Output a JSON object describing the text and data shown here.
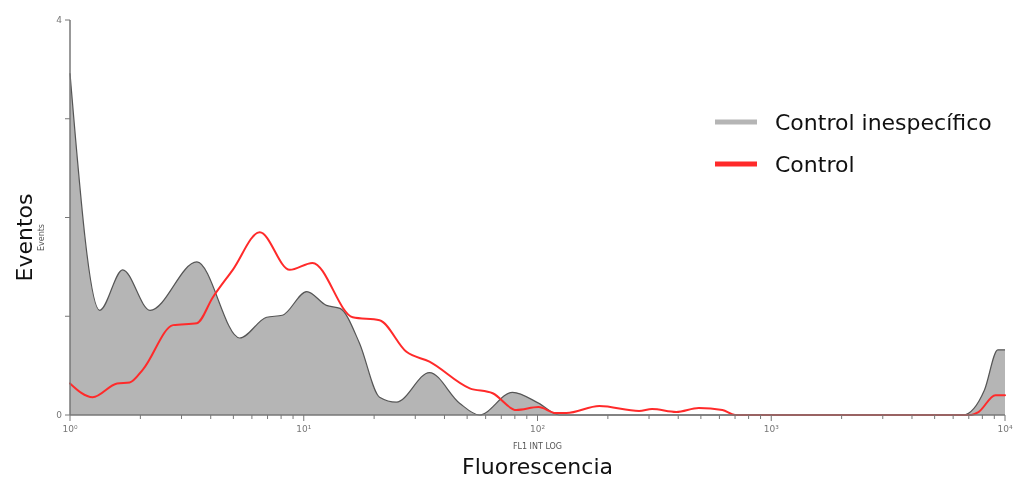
{
  "chart_data": {
    "type": "area",
    "xlabel": "Fluorescencia",
    "ylabel": "Eventos",
    "annotations": [
      "FL1 INT LOG",
      "Events"
    ],
    "log": "x",
    "grid": false,
    "legend": "top right",
    "xlim": [
      1,
      10000
    ],
    "ylim": [
      0,
      4
    ],
    "xticks": [
      {
        "value": 1,
        "label": "10⁰"
      },
      {
        "value": 2,
        "label": null
      },
      {
        "value": 3,
        "label": null
      },
      {
        "value": 4,
        "label": null
      },
      {
        "value": 5,
        "label": null
      },
      {
        "value": 6,
        "label": null
      },
      {
        "value": 7,
        "label": null
      },
      {
        "value": 8,
        "label": null
      },
      {
        "value": 9,
        "label": null
      },
      {
        "value": 10,
        "label": "10¹"
      },
      {
        "value": 20,
        "label": null
      },
      {
        "value": 30,
        "label": null
      },
      {
        "value": 40,
        "label": null
      },
      {
        "value": 50,
        "label": null
      },
      {
        "value": 60,
        "label": null
      },
      {
        "value": 70,
        "label": null
      },
      {
        "value": 80,
        "label": null
      },
      {
        "value": 90,
        "label": null
      },
      {
        "value": 100,
        "label": "10²"
      },
      {
        "value": 200,
        "label": null
      },
      {
        "value": 300,
        "label": null
      },
      {
        "value": 400,
        "label": null
      },
      {
        "value": 500,
        "label": null
      },
      {
        "value": 600,
        "label": null
      },
      {
        "value": 700,
        "label": null
      },
      {
        "value": 800,
        "label": null
      },
      {
        "value": 900,
        "label": null
      },
      {
        "value": 1000,
        "label": "10³"
      },
      {
        "value": 2000,
        "label": null
      },
      {
        "value": 3000,
        "label": null
      },
      {
        "value": 4000,
        "label": null
      },
      {
        "value": 5000,
        "label": null
      },
      {
        "value": 6000,
        "label": null
      },
      {
        "value": 7000,
        "label": null
      },
      {
        "value": 8000,
        "label": null
      },
      {
        "value": 9000,
        "label": null
      },
      {
        "value": 10000,
        "label": "10⁴"
      }
    ],
    "yticks": [
      0,
      {
        "value": 1,
        "label": null
      },
      {
        "value": 2,
        "label": null
      },
      {
        "value": 3,
        "label": null
      },
      4
    ],
    "series": [
      {
        "name": "Control inespecífico",
        "color": "#b5b5b5",
        "x": [
          1,
          1.34,
          1.68,
          2.2,
          3.49,
          5.32,
          6.94,
          8.1,
          10.3,
          12.5,
          14.3,
          17.3,
          21.1,
          24.9,
          34.5,
          46.4,
          56.4,
          78.2,
          101,
          124,
          6620,
          8160,
          9320,
          10000
        ],
        "values": [
          3.46,
          1.06,
          1.47,
          1.06,
          1.55,
          0.78,
          0.99,
          1.01,
          1.25,
          1.11,
          1.08,
          0.73,
          0.18,
          0.13,
          0.43,
          0.12,
          0,
          0.23,
          0.12,
          0,
          0,
          0.25,
          0.66,
          0.66
        ]
      },
      {
        "name": "Control",
        "type": "line",
        "color": "#ff2a2a",
        "x": [
          1,
          1.25,
          1.59,
          1.8,
          2.05,
          2.76,
          3.49,
          4.08,
          4.97,
          6.48,
          8.71,
          10.9,
          16.2,
          21.1,
          27.5,
          34.5,
          51.3,
          64.3,
          81.2,
          101,
          120,
          133,
          184,
          272,
          309,
          392,
          490,
          618,
          700,
          7170,
          7700,
          9100,
          10000
        ],
        "values": [
          0.32,
          0.18,
          0.32,
          0.33,
          0.46,
          0.91,
          0.93,
          1.19,
          1.47,
          1.85,
          1.47,
          1.54,
          0.99,
          0.96,
          0.64,
          0.54,
          0.27,
          0.22,
          0.05,
          0.08,
          0.02,
          0.02,
          0.09,
          0.04,
          0.06,
          0.03,
          0.07,
          0.05,
          0,
          0,
          0.03,
          0.2,
          0.2
        ]
      }
    ]
  }
}
